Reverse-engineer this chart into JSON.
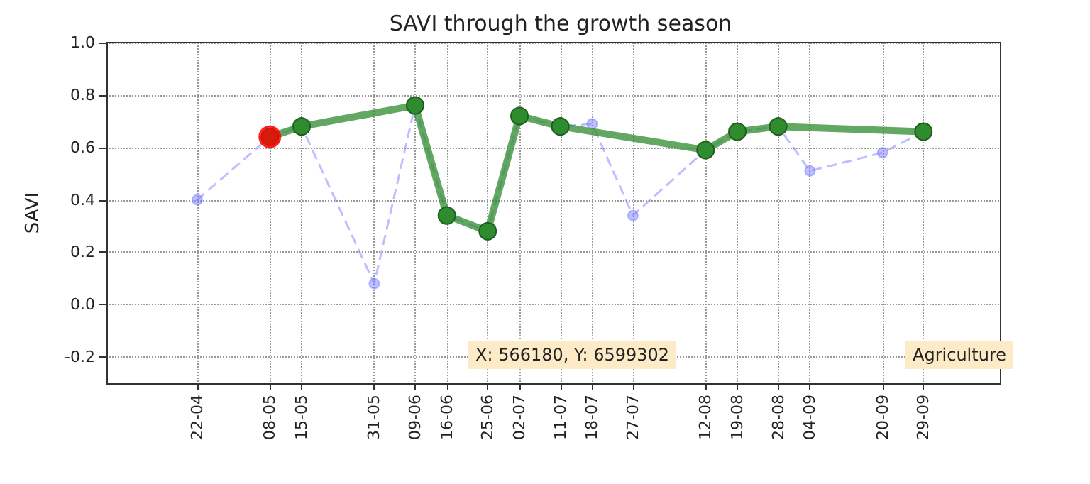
{
  "chart_data": {
    "type": "line",
    "title": "SAVI through the growth season",
    "ylabel": "SAVI",
    "x": [
      "--04-22",
      "--05-08",
      "--05-15",
      "--05-31",
      "--06-09",
      "--06-16",
      "--06-25",
      "--07-02",
      "--07-11",
      "--07-18",
      "--07-27",
      "--08-12",
      "--08-19",
      "--08-28",
      "--09-04",
      "--09-20",
      "--09-29"
    ],
    "series": [
      {
        "color": "#8080ff",
        "line_style": "dashed",
        "values": [
          0.4,
          0.64,
          0.68,
          0.08,
          0.76,
          0.34,
          0.28,
          0.72,
          0.68,
          0.69,
          0.34,
          0.59,
          0.66,
          0.68,
          0.51,
          0.58,
          0.66
        ]
      },
      {
        "color": "#2e8b2e",
        "line_style": "solid",
        "x": [
          "--05-08",
          "--05-15",
          "--06-09",
          "--06-16",
          "--06-25",
          "--07-02",
          "--07-11",
          "--08-12",
          "--08-19",
          "--08-28",
          "--09-29"
        ],
        "values": [
          0.64,
          0.68,
          0.76,
          0.34,
          0.28,
          0.72,
          0.68,
          0.59,
          0.66,
          0.68,
          0.66
        ]
      },
      {
        "type": "scatter",
        "color": "#ff0000",
        "x": [
          "--05-08"
        ],
        "values": [
          0.64
        ]
      }
    ],
    "xlim": [
      "--04-02",
      "--10-16"
    ],
    "xticks": [
      {
        "value": "--04-22",
        "label": "22-04"
      },
      {
        "value": "--05-08",
        "label": "08-05"
      },
      {
        "value": "--05-15",
        "label": "15-05"
      },
      {
        "value": "--05-31",
        "label": "31-05"
      },
      {
        "value": "--06-09",
        "label": "09-06"
      },
      {
        "value": "--06-16",
        "label": "16-06"
      },
      {
        "value": "--06-25",
        "label": "25-06"
      },
      {
        "value": "--07-02",
        "label": "02-07"
      },
      {
        "value": "--07-11",
        "label": "11-07"
      },
      {
        "value": "--07-18",
        "label": "18-07"
      },
      {
        "value": "--07-27",
        "label": "27-07"
      },
      {
        "value": "--08-12",
        "label": "12-08"
      },
      {
        "value": "--08-19",
        "label": "19-08"
      },
      {
        "value": "--08-28",
        "label": "28-08"
      },
      {
        "value": "--09-04",
        "label": "04-09"
      },
      {
        "value": "--09-20",
        "label": "20-09"
      },
      {
        "value": "--09-29",
        "label": "29-09"
      }
    ],
    "ylim": [
      -0.3,
      1.0
    ],
    "yticks": [
      -0.2,
      {
        "value": 0,
        "label": "0.0"
      },
      0.2,
      0.4,
      0.6,
      0.8,
      {
        "value": 1,
        "label": "1.0"
      }
    ],
    "grid": true,
    "marker": "circle",
    "annotations": [
      "X: 566180, Y: 6599302",
      "Agriculture"
    ]
  }
}
